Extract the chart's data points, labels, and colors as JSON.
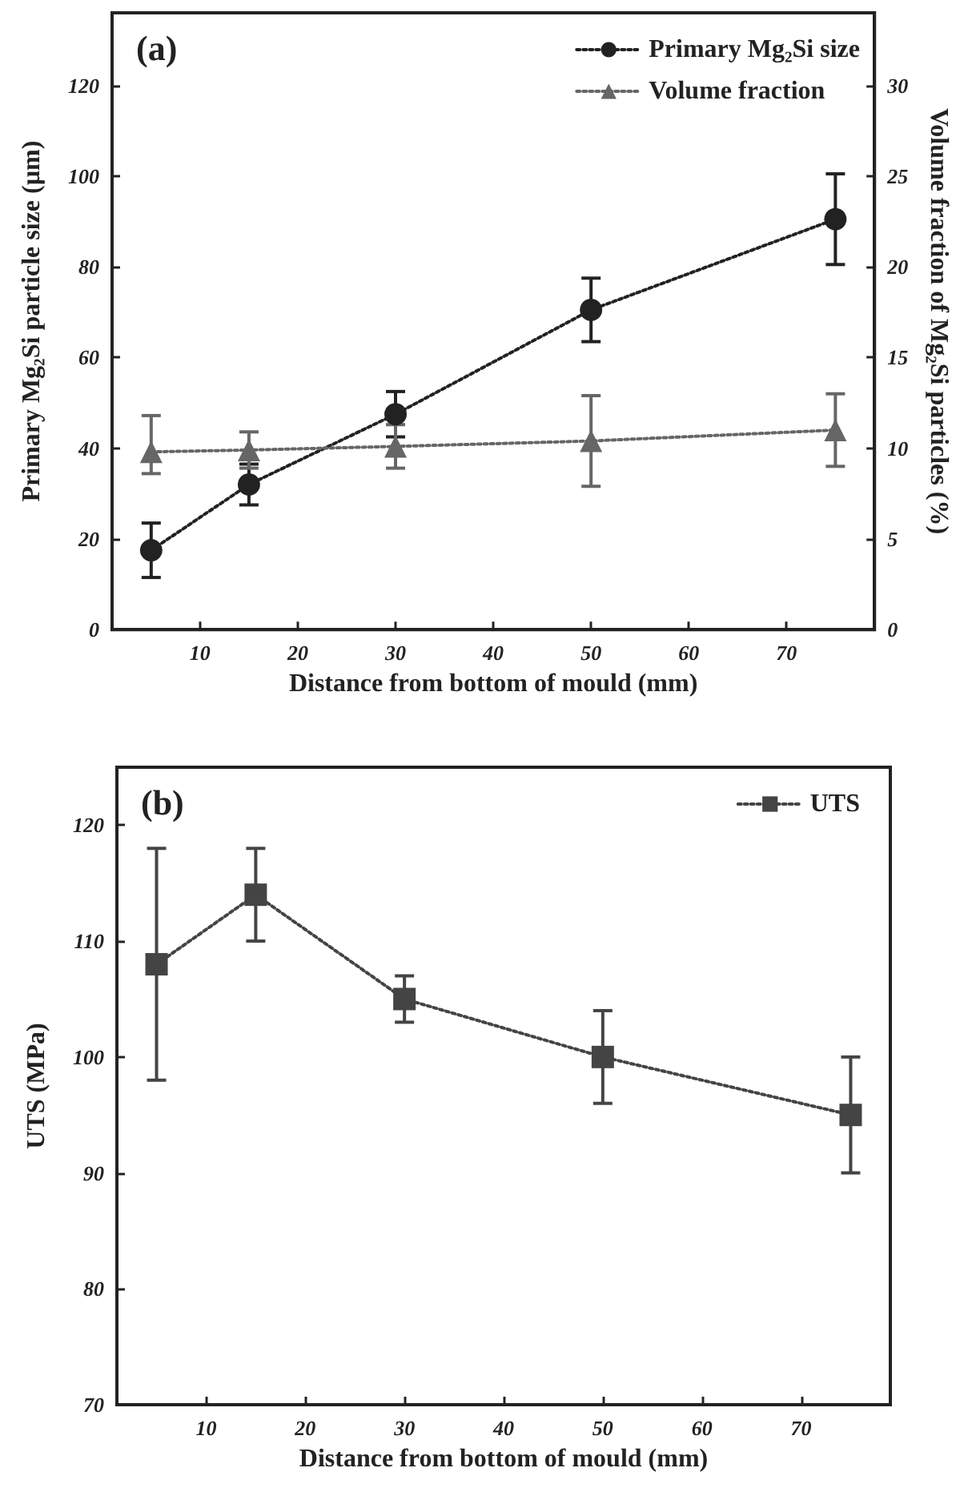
{
  "chart_data": [
    {
      "type": "line",
      "title": "(a)",
      "xlabel": "Distance from bottom of mould (mm)",
      "ylabel": "Primary Mg₂Si particle size (µm)",
      "y2label": "Volume fraction of Mg₂Si particles (%)",
      "x": [
        5,
        15,
        30,
        50,
        75
      ],
      "series": [
        {
          "name": "Primary Mg₂Si size",
          "color": "#222222",
          "marker": "circle",
          "values": [
            17.5,
            32,
            47.5,
            70.5,
            90.5
          ],
          "errors": [
            6,
            4.5,
            5,
            7,
            10
          ]
        },
        {
          "name": "Volume fraction",
          "color": "#666666",
          "marker": "triangle",
          "axis": "y2",
          "values": [
            9.8,
            9.9,
            10.1,
            10.4,
            11
          ],
          "errors": [
            [
              8.6,
              11.8
            ],
            1,
            1.2,
            2.5,
            2
          ]
        }
      ],
      "xlim": [
        1,
        79
      ],
      "xticks": [
        10,
        20,
        30,
        40,
        50,
        60,
        70
      ],
      "ylim": [
        0,
        136
      ],
      "yticks": [
        0,
        20,
        40,
        60,
        80,
        100,
        120
      ],
      "y2lim": [
        0,
        34
      ],
      "y2ticks": [
        0,
        5,
        10,
        15,
        20,
        25,
        30
      ],
      "legend": "top right",
      "grid": false,
      "line_style": "dotted"
    },
    {
      "type": "line",
      "title": "(b)",
      "xlabel": "Distance from bottom of mould (mm)",
      "ylabel": "UTS (MPa)",
      "x": [
        5,
        15,
        30,
        50,
        75
      ],
      "series": [
        {
          "name": "UTS",
          "color": "#444444",
          "marker": "square",
          "values": [
            108,
            114,
            105,
            100,
            95
          ],
          "errors": [
            10,
            4,
            2,
            4,
            5
          ]
        }
      ],
      "xlim": [
        1,
        79
      ],
      "xticks": [
        10,
        20,
        30,
        40,
        50,
        60,
        70
      ],
      "ylim": [
        70,
        125
      ],
      "yticks": [
        70,
        80,
        90,
        100,
        110,
        120
      ],
      "legend": "top right",
      "grid": false,
      "line_style": "dotted"
    }
  ]
}
